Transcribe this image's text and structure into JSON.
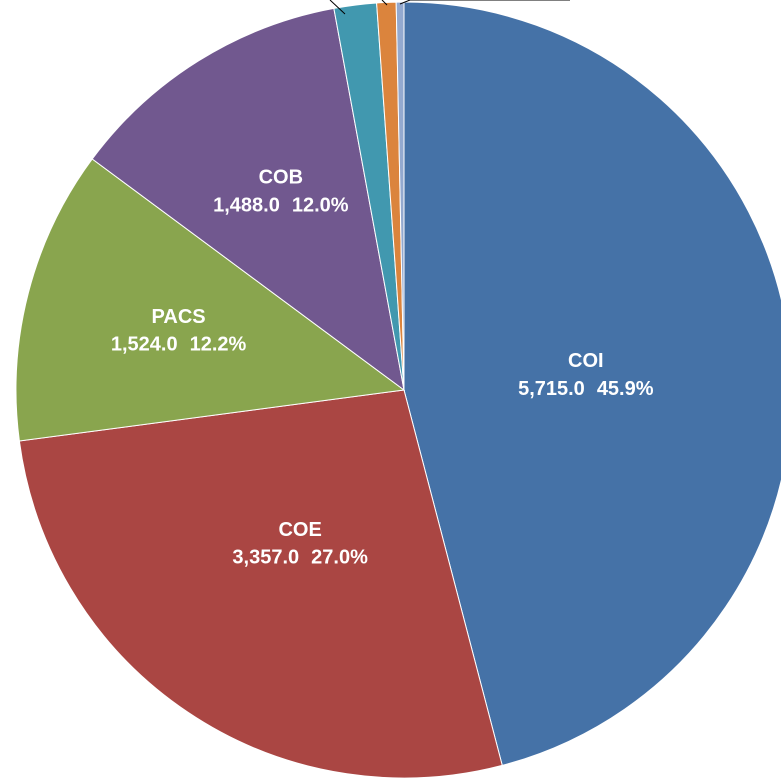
{
  "chart_data": {
    "type": "pie",
    "categories": [
      "COI",
      "COE",
      "PACS",
      "COB",
      null,
      null,
      null
    ],
    "values": [
      5715,
      3357,
      1524,
      1488,
      220,
      100,
      40
    ],
    "value_labels": [
      "5,715.0",
      "3,357.0",
      "1,524.0",
      "1,488.0",
      null,
      null,
      null
    ],
    "percent_labels": [
      "45.9%",
      "27.0%",
      "12.2%",
      "12.0%",
      null,
      null,
      null
    ],
    "colors": [
      "#4572a7",
      "#aa4643",
      "#89a54e",
      "#71588f",
      "#4198af",
      "#db843d",
      "#93a9cf"
    ]
  }
}
